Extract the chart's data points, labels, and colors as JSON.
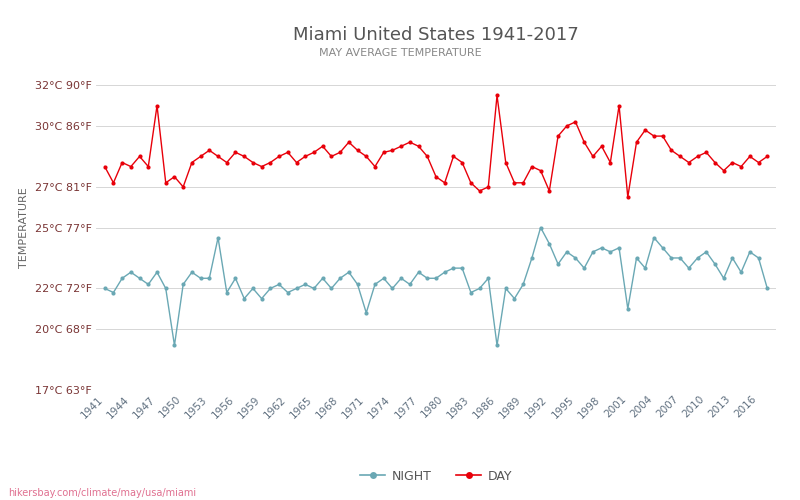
{
  "title": "Miami United States 1941-2017",
  "subtitle": "MAY AVERAGE TEMPERATURE",
  "ylabel": "TEMPERATURE",
  "watermark": "hikersbay.com/climate/may/usa/miami",
  "years": [
    1941,
    1942,
    1943,
    1944,
    1945,
    1946,
    1947,
    1948,
    1949,
    1950,
    1951,
    1952,
    1953,
    1954,
    1955,
    1956,
    1957,
    1958,
    1959,
    1960,
    1961,
    1962,
    1963,
    1964,
    1965,
    1966,
    1967,
    1968,
    1969,
    1970,
    1971,
    1972,
    1973,
    1974,
    1975,
    1976,
    1977,
    1978,
    1979,
    1980,
    1981,
    1982,
    1983,
    1984,
    1985,
    1986,
    1987,
    1988,
    1989,
    1990,
    1991,
    1992,
    1993,
    1994,
    1995,
    1996,
    1997,
    1998,
    1999,
    2000,
    2001,
    2002,
    2003,
    2004,
    2005,
    2006,
    2007,
    2008,
    2009,
    2010,
    2011,
    2012,
    2013,
    2014,
    2015,
    2016,
    2017
  ],
  "day": [
    28.0,
    27.2,
    28.2,
    28.0,
    28.5,
    28.0,
    31.0,
    27.2,
    27.5,
    27.0,
    28.2,
    28.5,
    28.8,
    28.5,
    28.2,
    28.7,
    28.5,
    28.2,
    28.0,
    28.2,
    28.5,
    28.7,
    28.2,
    28.5,
    28.7,
    29.0,
    28.5,
    28.7,
    29.2,
    28.8,
    28.5,
    28.0,
    28.7,
    28.8,
    29.0,
    29.2,
    29.0,
    28.5,
    27.5,
    27.2,
    28.5,
    28.2,
    27.2,
    26.8,
    27.0,
    31.5,
    28.2,
    27.2,
    27.2,
    28.0,
    27.8,
    26.8,
    29.5,
    30.0,
    30.2,
    29.2,
    28.5,
    29.0,
    28.2,
    31.0,
    26.5,
    29.2,
    29.8,
    29.5,
    29.5,
    28.8,
    28.5,
    28.2,
    28.5,
    28.7,
    28.2,
    27.8,
    28.2,
    28.0,
    28.5,
    28.2,
    28.5
  ],
  "night": [
    22.0,
    21.8,
    22.5,
    22.8,
    22.5,
    22.2,
    22.8,
    22.0,
    19.2,
    22.2,
    22.8,
    22.5,
    22.5,
    24.5,
    21.8,
    22.5,
    21.5,
    22.0,
    21.5,
    22.0,
    22.2,
    21.8,
    22.0,
    22.2,
    22.0,
    22.5,
    22.0,
    22.5,
    22.8,
    22.2,
    20.8,
    22.2,
    22.5,
    22.0,
    22.5,
    22.2,
    22.8,
    22.5,
    22.5,
    22.8,
    23.0,
    23.0,
    21.8,
    22.0,
    22.5,
    19.2,
    22.0,
    21.5,
    22.2,
    23.5,
    25.0,
    24.2,
    23.2,
    23.8,
    23.5,
    23.0,
    23.8,
    24.0,
    23.8,
    24.0,
    21.0,
    23.5,
    23.0,
    24.5,
    24.0,
    23.5,
    23.5,
    23.0,
    23.5,
    23.8,
    23.2,
    22.5,
    23.5,
    22.8,
    23.8,
    23.5,
    22.0
  ],
  "day_color": "#e8000a",
  "night_color": "#6aa8b4",
  "bg_color": "#ffffff",
  "grid_color": "#d0d0d0",
  "title_color": "#555555",
  "subtitle_color": "#888888",
  "ylabel_color": "#666666",
  "ytick_color": "#7a3535",
  "xtick_color": "#607080",
  "ylim_celsius": [
    17,
    33
  ],
  "yticks_celsius": [
    17,
    20,
    22,
    25,
    27,
    30,
    32
  ],
  "ytick_labels": [
    "17°C 63°F",
    "20°C 68°F",
    "22°C 72°F",
    "25°C 77°F",
    "27°C 81°F",
    "30°C 86°F",
    "32°C 90°F"
  ],
  "xtick_years": [
    1941,
    1944,
    1947,
    1950,
    1953,
    1956,
    1959,
    1962,
    1965,
    1968,
    1971,
    1974,
    1977,
    1980,
    1983,
    1986,
    1989,
    1992,
    1995,
    1998,
    2001,
    2004,
    2007,
    2010,
    2013,
    2016
  ]
}
